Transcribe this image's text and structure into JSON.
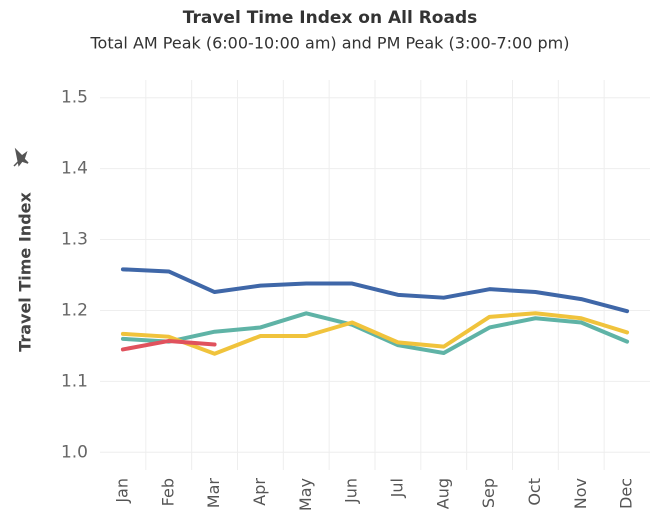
{
  "chart_data": {
    "type": "line",
    "title": "Travel Time Index on All Roads",
    "subtitle": "Total AM Peak (6:00-10:00 am) and PM Peak (3:00-7:00 pm)",
    "y_label": "Travel Time Index",
    "categories": [
      "Jan",
      "Feb",
      "Mar",
      "Apr",
      "May",
      "Jun",
      "Jul",
      "Aug",
      "Sep",
      "Oct",
      "Nov",
      "Dec"
    ],
    "series": [
      {
        "color": "#3f67a8",
        "values": [
          1.258,
          1.255,
          1.226,
          1.235,
          1.238,
          1.238,
          1.222,
          1.218,
          1.23,
          1.226,
          1.216,
          1.199
        ]
      },
      {
        "color": "#5fb3a6",
        "values": [
          1.16,
          1.156,
          1.17,
          1.176,
          1.196,
          1.18,
          1.151,
          1.14,
          1.176,
          1.189,
          1.183,
          1.156
        ]
      },
      {
        "color": "#f0c33c",
        "values": [
          1.167,
          1.163,
          1.139,
          1.164,
          1.164,
          1.183,
          1.155,
          1.149,
          1.191,
          1.196,
          1.189,
          1.169
        ]
      },
      {
        "color": "#e0525d",
        "values": [
          1.145,
          1.157,
          1.152,
          null,
          null,
          null,
          null,
          null,
          null,
          null,
          null,
          null
        ]
      }
    ],
    "ylim": [
      0.975,
      1.525
    ],
    "yticks": [
      {
        "value": 1,
        "label": "1.0"
      },
      1.1,
      1.2,
      1.3,
      1.4,
      1.5
    ],
    "grid": true
  }
}
